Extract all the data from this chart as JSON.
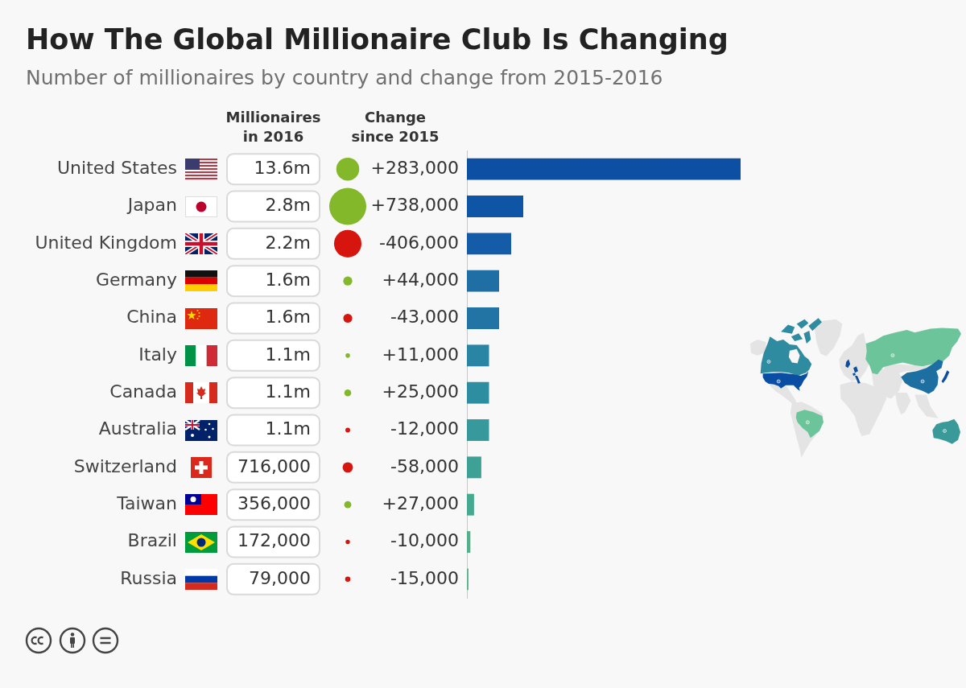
{
  "chart_data": [
    {
      "type": "bar",
      "orientation": "horizontal",
      "title": "How The Global Millionaire Club Is Changing",
      "subtitle": "Number of millionaires by country and change from 2015-2016",
      "categories": [
        "United States",
        "Japan",
        "United Kingdom",
        "Germany",
        "China",
        "Italy",
        "Canada",
        "Australia",
        "Switzerland",
        "Taiwan",
        "Brazil",
        "Russia"
      ],
      "series": [
        {
          "name": "Millionaires in 2016",
          "values": [
            13600000,
            2800000,
            2200000,
            1600000,
            1600000,
            1100000,
            1100000,
            1100000,
            716000,
            356000,
            172000,
            79000
          ],
          "value_labels": [
            "13.6m",
            "2.8m",
            "2.2m",
            "1.6m",
            "1.6m",
            "1.1m",
            "1.1m",
            "1.1m",
            "716,000",
            "356,000",
            "172,000",
            "79,000"
          ],
          "colors": [
            "#0d4fa3",
            "#0f55a6",
            "#145ca7",
            "#1f6ea4",
            "#2274a5",
            "#2a85a5",
            "#2e8ea1",
            "#37999c",
            "#3da295",
            "#45aa8f",
            "#52b08d",
            "#5cb88c"
          ]
        }
      ]
    },
    {
      "type": "other",
      "title": "Change since 2015",
      "values": [
        283000,
        738000,
        -406000,
        44000,
        -43000,
        11000,
        25000,
        -12000,
        -58000,
        27000,
        -10000,
        -15000
      ],
      "value_labels": [
        "+283,000",
        "+738,000",
        "-406,000",
        "+44,000",
        "-43,000",
        "+11,000",
        "+25,000",
        "-12,000",
        "-58,000",
        "+27,000",
        "-10,000",
        "-15,000"
      ],
      "colors": [
        "#82b82a",
        "#82b82a",
        "#d7150f",
        "#82b82a",
        "#d7150f",
        "#82b82a",
        "#82b82a",
        "#d7150f",
        "#d7150f",
        "#82b82a",
        "#d7150f",
        "#d7150f"
      ]
    }
  ]
}
